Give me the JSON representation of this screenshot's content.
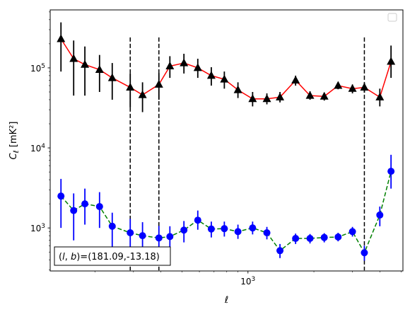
{
  "chart_data": {
    "type": "line",
    "xlabel": "ℓ",
    "ylabel_main": "C",
    "ylabel_sub": "ℓ",
    "ylabel_units": "[mK²]",
    "xscale": "log",
    "yscale": "log",
    "xlim": [
      125,
      5100
    ],
    "ylim": [
      290,
      530000
    ],
    "x_tick_labels": [
      {
        "value": 1000,
        "base": "10",
        "exp": "3"
      }
    ],
    "y_tick_labels": [
      {
        "value": 1000,
        "base": "10",
        "exp": "3"
      },
      {
        "value": 10000,
        "base": "10",
        "exp": "4"
      },
      {
        "value": 100000,
        "base": "10",
        "exp": "5"
      }
    ],
    "vlines": [
      290,
      392,
      3400
    ],
    "annotation": {
      "prefix": "(",
      "l": "l",
      "sep": ", ",
      "b": "b",
      "suffix": ")=(181.09,-13.18)"
    },
    "legend": "empty box, top-right",
    "series": [
      {
        "marker": "triangle",
        "marker_color": "#000000",
        "line_color": "#ff0000",
        "line_style": "solid",
        "points": [
          {
            "x": 140,
            "y": 230000,
            "lo": 90000,
            "hi": 370000
          },
          {
            "x": 160,
            "y": 130000,
            "lo": 45000,
            "hi": 220000
          },
          {
            "x": 180,
            "y": 110000,
            "lo": 45000,
            "hi": 185000
          },
          {
            "x": 210,
            "y": 95000,
            "lo": 50000,
            "hi": 145000
          },
          {
            "x": 240,
            "y": 75000,
            "lo": 40000,
            "hi": 115000
          },
          {
            "x": 290,
            "y": 57000,
            "lo": 32000,
            "hi": 85000
          },
          {
            "x": 330,
            "y": 46000,
            "lo": 28000,
            "hi": 66000
          },
          {
            "x": 392,
            "y": 62000,
            "lo": 40000,
            "hi": 86000
          },
          {
            "x": 440,
            "y": 105000,
            "lo": 75000,
            "hi": 140000
          },
          {
            "x": 510,
            "y": 115000,
            "lo": 85000,
            "hi": 150000
          },
          {
            "x": 590,
            "y": 100000,
            "lo": 75000,
            "hi": 130000
          },
          {
            "x": 680,
            "y": 80000,
            "lo": 60000,
            "hi": 102000
          },
          {
            "x": 780,
            "y": 72000,
            "lo": 55000,
            "hi": 90000
          },
          {
            "x": 900,
            "y": 53000,
            "lo": 42000,
            "hi": 66000
          },
          {
            "x": 1050,
            "y": 41000,
            "lo": 33000,
            "hi": 50000
          },
          {
            "x": 1220,
            "y": 41000,
            "lo": 35000,
            "hi": 48000
          },
          {
            "x": 1400,
            "y": 43000,
            "lo": 37000,
            "hi": 50000
          },
          {
            "x": 1650,
            "y": 70000,
            "lo": 60000,
            "hi": 80000
          },
          {
            "x": 1920,
            "y": 45000,
            "lo": 40000,
            "hi": 51000
          },
          {
            "x": 2230,
            "y": 44000,
            "lo": 39000,
            "hi": 49000
          },
          {
            "x": 2580,
            "y": 60000,
            "lo": 54000,
            "hi": 66000
          },
          {
            "x": 3000,
            "y": 55000,
            "lo": 48000,
            "hi": 62000
          },
          {
            "x": 3400,
            "y": 57000,
            "lo": 49000,
            "hi": 65000
          },
          {
            "x": 4000,
            "y": 43000,
            "lo": 33000,
            "hi": 55000
          },
          {
            "x": 4500,
            "y": 120000,
            "lo": 75000,
            "hi": 190000
          }
        ]
      },
      {
        "marker": "circle",
        "marker_color": "#0000ff",
        "line_color": "#008000",
        "line_style": "dashed",
        "points": [
          {
            "x": 140,
            "y": 2500,
            "lo": 1000,
            "hi": 4100
          },
          {
            "x": 160,
            "y": 1650,
            "lo": 700,
            "hi": 2700
          },
          {
            "x": 180,
            "y": 2000,
            "lo": 1100,
            "hi": 3100
          },
          {
            "x": 210,
            "y": 1850,
            "lo": 1000,
            "hi": 2800
          },
          {
            "x": 240,
            "y": 1050,
            "lo": 550,
            "hi": 1550
          },
          {
            "x": 290,
            "y": 870,
            "lo": 450,
            "hi": 1300
          },
          {
            "x": 330,
            "y": 800,
            "lo": 420,
            "hi": 1180
          },
          {
            "x": 392,
            "y": 750,
            "lo": 430,
            "hi": 1060
          },
          {
            "x": 440,
            "y": 780,
            "lo": 500,
            "hi": 1050
          },
          {
            "x": 510,
            "y": 940,
            "lo": 660,
            "hi": 1220
          },
          {
            "x": 590,
            "y": 1250,
            "lo": 950,
            "hi": 1650
          },
          {
            "x": 680,
            "y": 970,
            "lo": 760,
            "hi": 1200
          },
          {
            "x": 780,
            "y": 980,
            "lo": 780,
            "hi": 1200
          },
          {
            "x": 900,
            "y": 900,
            "lo": 730,
            "hi": 1100
          },
          {
            "x": 1050,
            "y": 1000,
            "lo": 830,
            "hi": 1200
          },
          {
            "x": 1220,
            "y": 870,
            "lo": 720,
            "hi": 1030
          },
          {
            "x": 1400,
            "y": 520,
            "lo": 420,
            "hi": 630
          },
          {
            "x": 1650,
            "y": 740,
            "lo": 630,
            "hi": 850
          },
          {
            "x": 1920,
            "y": 740,
            "lo": 640,
            "hi": 840
          },
          {
            "x": 2230,
            "y": 760,
            "lo": 660,
            "hi": 860
          },
          {
            "x": 2580,
            "y": 770,
            "lo": 680,
            "hi": 870
          },
          {
            "x": 3000,
            "y": 900,
            "lo": 780,
            "hi": 1030
          },
          {
            "x": 3400,
            "y": 490,
            "lo": 390,
            "hi": 600
          },
          {
            "x": 4000,
            "y": 1450,
            "lo": 1050,
            "hi": 1850
          },
          {
            "x": 4500,
            "y": 5100,
            "lo": 3100,
            "hi": 8200
          }
        ]
      }
    ]
  }
}
